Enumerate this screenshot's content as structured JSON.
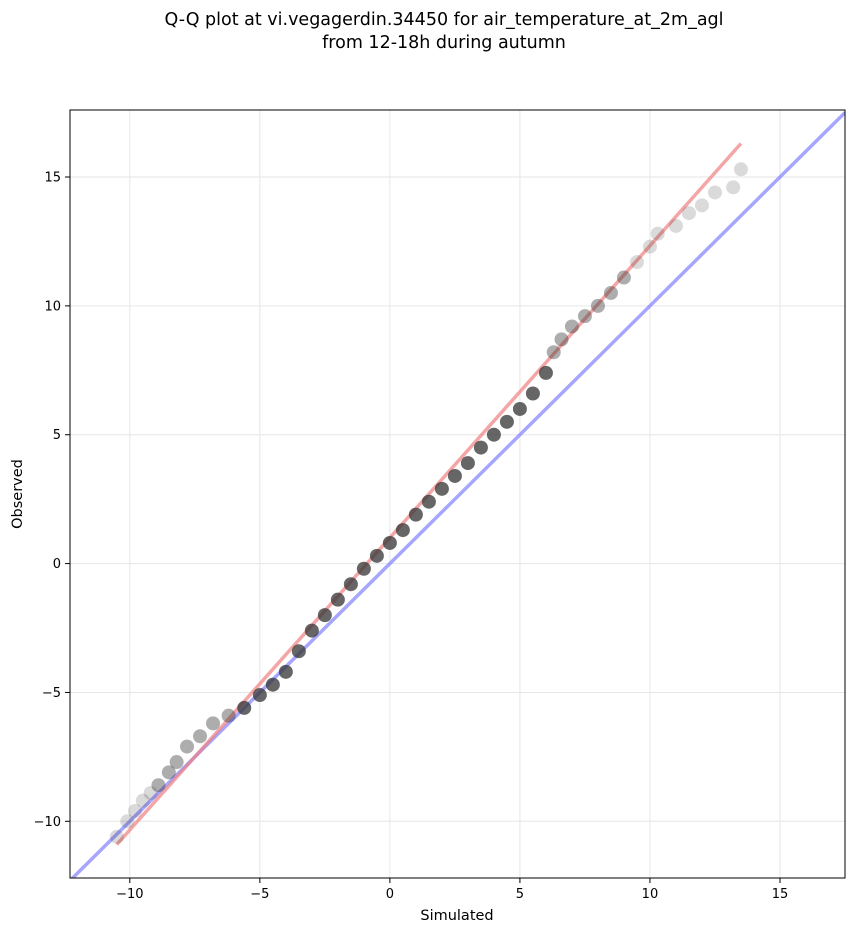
{
  "chart_data": {
    "type": "scatter",
    "title": "Q-Q plot at vi.vegagerdin.34450 for air_temperature_at_2m_agl",
    "subtitle": "from 12-18h during autumn",
    "xlabel": "Simulated",
    "ylabel": "Observed",
    "xlim": [
      -12.3,
      17.5
    ],
    "ylim": [
      -12.2,
      17.6
    ],
    "x_ticks": [
      -10,
      -5,
      0,
      5,
      10,
      15
    ],
    "y_ticks": [
      -10,
      -5,
      0,
      5,
      10,
      15
    ],
    "x_tick_labels": [
      "−10",
      "−5",
      "0",
      "5",
      "10",
      "15"
    ],
    "y_tick_labels": [
      "−10",
      "−5",
      "0",
      "5",
      "10",
      "15"
    ],
    "grid": true,
    "legend": "none",
    "marker_color": "#333333",
    "reference_lines": [
      {
        "kind": "identity",
        "color": "#6a6aff",
        "x": [
          -12.3,
          17.5
        ],
        "y": [
          -12.3,
          17.5
        ]
      },
      {
        "kind": "fit",
        "color": "#f08080",
        "x": [
          -10.5,
          13.5
        ],
        "y": [
          -10.9,
          16.3
        ]
      }
    ],
    "points": {
      "x": [
        -10.5,
        -10.1,
        -9.8,
        -9.5,
        -9.2,
        -8.9,
        -8.5,
        -8.2,
        -7.8,
        -7.3,
        -6.8,
        -6.2,
        -5.6,
        -5.0,
        -4.5,
        -4.0,
        -3.5,
        -3.0,
        -2.5,
        -2.0,
        -1.5,
        -1.0,
        -0.5,
        0.0,
        0.5,
        1.0,
        1.5,
        2.0,
        2.5,
        3.0,
        3.5,
        4.0,
        4.5,
        5.0,
        5.5,
        6.0,
        6.3,
        6.6,
        7.0,
        7.5,
        8.0,
        8.5,
        9.0,
        9.5,
        10.0,
        10.3,
        11.0,
        11.5,
        12.0,
        12.5,
        13.2,
        13.5
      ],
      "y": [
        -10.6,
        -10.0,
        -9.6,
        -9.2,
        -8.9,
        -8.6,
        -8.1,
        -7.7,
        -7.1,
        -6.7,
        -6.2,
        -5.9,
        -5.6,
        -5.1,
        -4.7,
        -4.2,
        -3.4,
        -2.6,
        -2.0,
        -1.4,
        -0.8,
        -0.2,
        0.3,
        0.8,
        1.3,
        1.9,
        2.4,
        2.9,
        3.4,
        3.9,
        4.5,
        5.0,
        5.5,
        6.0,
        6.6,
        7.4,
        8.2,
        8.7,
        9.2,
        9.6,
        10.0,
        10.5,
        11.1,
        11.7,
        12.3,
        12.8,
        13.1,
        13.6,
        13.9,
        14.4,
        14.6,
        15.3
      ]
    }
  }
}
